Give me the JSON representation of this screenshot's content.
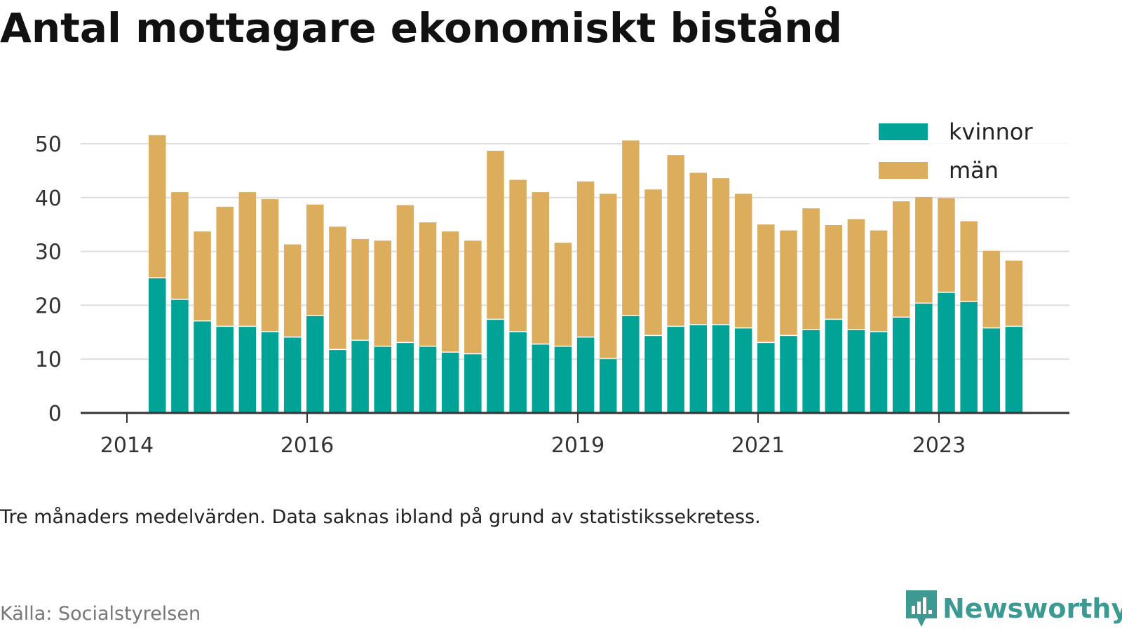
{
  "title": "Antal mottagare ekonomiskt bistånd",
  "note": "Tre månaders medelvärden. Data saknas ibland på grund av statistikssekretess.",
  "source": "Källa: Socialstyrelsen",
  "brand": {
    "name": "Newsworthy",
    "icon": "newsworthy-logo-icon",
    "color": "#3d9a92"
  },
  "colors": {
    "kvinnor": "#00a396",
    "man": "#dbad5c",
    "grid": "#dddddd",
    "axis": "#333333"
  },
  "chart_data": {
    "type": "bar",
    "stacked": true,
    "title": "Antal mottagare ekonomiskt bistånd",
    "x_ticks": [
      "2014",
      "2016",
      "2019",
      "2021",
      "2023"
    ],
    "y_ticks": [
      0,
      10,
      20,
      30,
      40,
      50
    ],
    "ylim": [
      0,
      55
    ],
    "grid": true,
    "legend_position": "top-right",
    "series": [
      {
        "name": "kvinnor",
        "values": [
          25,
          21,
          17,
          16,
          16,
          15,
          14,
          18,
          11.7,
          13.4,
          12.3,
          13,
          12.3,
          11.2,
          10.9,
          17.3,
          15,
          12.7,
          12.3,
          14,
          10,
          18,
          14.3,
          16,
          16.3,
          16.3,
          15.7,
          13,
          14.3,
          15.4,
          17.3,
          15.4,
          15,
          17.7,
          20.3,
          22.3,
          20.6,
          15.7,
          16
        ]
      },
      {
        "name": "män",
        "values": [
          26.6,
          20,
          16.7,
          22.3,
          25,
          24.7,
          17.3,
          20.7,
          22.9,
          18.9,
          19.7,
          25.6,
          23.1,
          22.5,
          21.1,
          31.4,
          28.3,
          28.3,
          19.3,
          29,
          30.7,
          32.6,
          27.2,
          31.9,
          28.3,
          27.3,
          25,
          22,
          19.6,
          22.6,
          17.6,
          20.6,
          18.9,
          21.6,
          19.8,
          17.6,
          15,
          14.4,
          12.3
        ]
      }
    ]
  }
}
